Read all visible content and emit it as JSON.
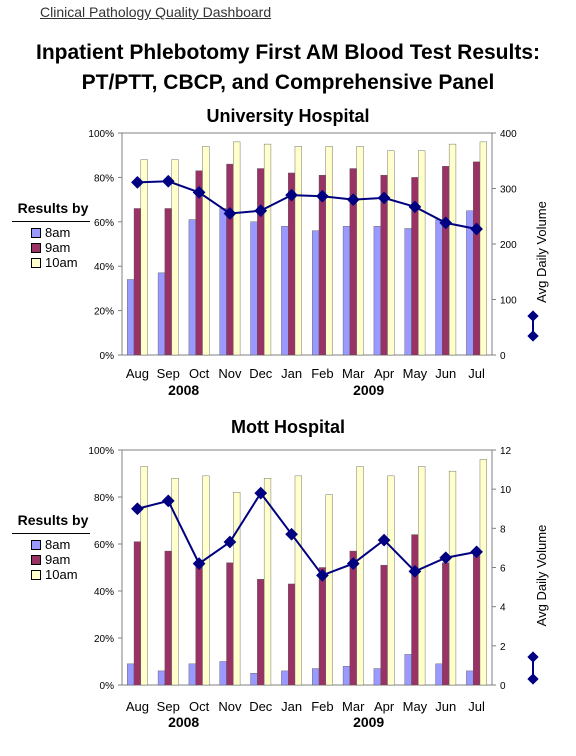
{
  "header": {
    "dashboard_label": "Clinical Pathology Quality Dashboard"
  },
  "title": {
    "line1": "Inpatient Phlebotomy First AM Blood Test Results:",
    "line2": "PT/PTT, CBCP, and Comprehensive Panel"
  },
  "colors": {
    "s8am": "#9999ff",
    "s9am": "#993366",
    "s10am": "#ffffcc",
    "line": "#000080"
  },
  "chart_data": [
    {
      "type": "bar",
      "title": "University Hospital",
      "legend_title": "Results by",
      "categories": [
        "Aug",
        "Sep",
        "Oct",
        "Nov",
        "Dec",
        "Jan",
        "Feb",
        "Mar",
        "Apr",
        "May",
        "Jun",
        "Jul"
      ],
      "year_labels": [
        {
          "label": "2008",
          "index": 1.5
        },
        {
          "label": "2009",
          "index": 7.5
        }
      ],
      "ylim": [
        0,
        100
      ],
      "y_ticks": [
        "0%",
        "20%",
        "40%",
        "60%",
        "80%",
        "100%"
      ],
      "y2label": "Avg Daily Volume",
      "y2lim": [
        0,
        400
      ],
      "y2_ticks": [
        "0",
        "100",
        "200",
        "300",
        "400"
      ],
      "series": [
        {
          "name": "8am",
          "values": [
            34,
            37,
            61,
            66,
            60,
            58,
            56,
            58,
            58,
            57,
            61,
            65
          ]
        },
        {
          "name": "9am",
          "values": [
            66,
            66,
            83,
            86,
            84,
            82,
            81,
            84,
            81,
            80,
            85,
            87
          ]
        },
        {
          "name": "10am",
          "values": [
            88,
            88,
            94,
            96,
            95,
            94,
            94,
            94,
            92,
            92,
            95,
            96
          ]
        }
      ],
      "line_series": {
        "values": [
          311,
          313,
          293,
          255,
          260,
          288,
          286,
          280,
          283,
          267,
          238,
          227
        ]
      }
    },
    {
      "type": "bar",
      "title": "Mott Hospital",
      "legend_title": "Results by",
      "categories": [
        "Aug",
        "Sep",
        "Oct",
        "Nov",
        "Dec",
        "Jan",
        "Feb",
        "Mar",
        "Apr",
        "May",
        "Jun",
        "Jul"
      ],
      "year_labels": [
        {
          "label": "2008",
          "index": 1.5
        },
        {
          "label": "2009",
          "index": 7.5
        }
      ],
      "ylim": [
        0,
        100
      ],
      "y_ticks": [
        "0%",
        "20%",
        "40%",
        "60%",
        "80%",
        "100%"
      ],
      "y2label": "Avg Daily Volume",
      "y2lim": [
        0,
        12
      ],
      "y2_ticks": [
        "0",
        "2",
        "4",
        "6",
        "8",
        "10",
        "12"
      ],
      "series": [
        {
          "name": "8am",
          "values": [
            9,
            6,
            9,
            10,
            5,
            6,
            7,
            8,
            7,
            13,
            9,
            6
          ]
        },
        {
          "name": "9am",
          "values": [
            61,
            57,
            52,
            52,
            45,
            43,
            50,
            57,
            51,
            64,
            52,
            57
          ]
        },
        {
          "name": "10am",
          "values": [
            93,
            88,
            89,
            82,
            88,
            89,
            81,
            93,
            89,
            93,
            91,
            96
          ]
        }
      ],
      "line_series": {
        "values": [
          9.0,
          9.4,
          6.2,
          7.3,
          9.8,
          7.7,
          5.6,
          6.2,
          7.4,
          5.8,
          6.5,
          6.8
        ]
      }
    }
  ]
}
